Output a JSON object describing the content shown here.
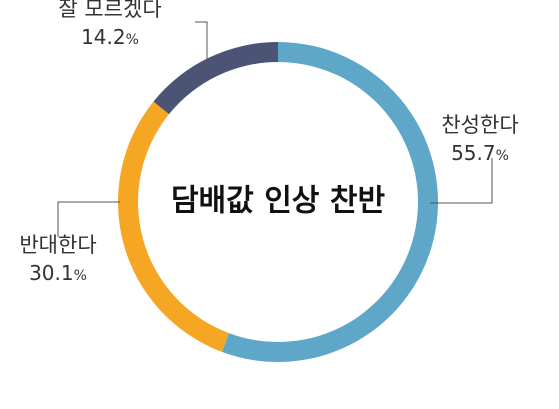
{
  "chart_data": {
    "type": "pie",
    "title": "담배값 인상 찬반",
    "categories": [
      "찬성한다",
      "반대한다",
      "잘 모르겠다"
    ],
    "values": [
      55.7,
      30.1,
      14.2
    ],
    "value_labels": [
      "55.7",
      "30.1",
      "14.2"
    ],
    "unit": "%",
    "colors": [
      "#5ea7c9",
      "#f5a623",
      "#4b5475"
    ],
    "donut": true,
    "start": "12 o'clock",
    "direction": "clockwise",
    "legend": "none"
  }
}
